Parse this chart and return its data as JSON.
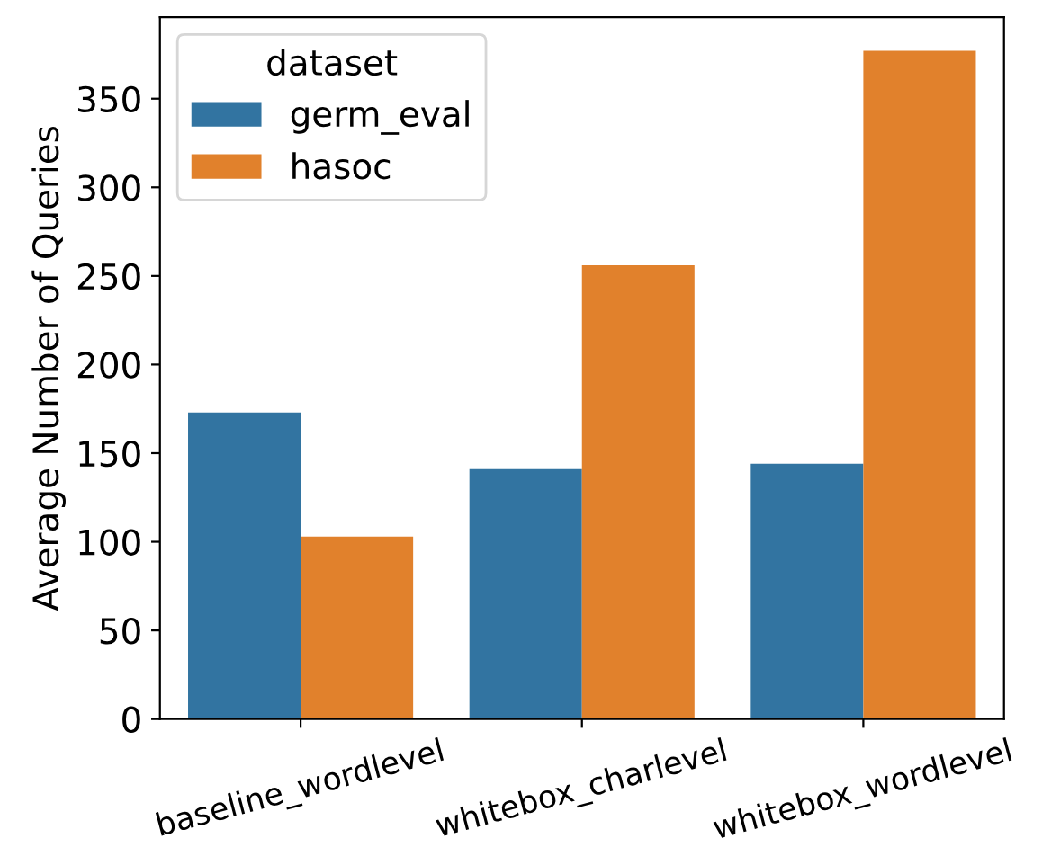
{
  "chart_data": {
    "type": "bar",
    "ylabel": "Average Number of Queries",
    "legend_title": "dataset",
    "categories": [
      "baseline_wordlevel",
      "whitebox_charlevel",
      "whitebox_wordlevel"
    ],
    "series": [
      {
        "name": "germ_eval",
        "color": "#3274a1",
        "values": [
          173,
          141,
          144
        ]
      },
      {
        "name": "hasoc",
        "color": "#e1812c",
        "values": [
          103,
          256,
          377
        ]
      }
    ],
    "ylim": [
      0,
      396
    ],
    "yticks": [
      0,
      50,
      100,
      150,
      200,
      250,
      300,
      350
    ],
    "grid": false,
    "legend": "top left"
  }
}
